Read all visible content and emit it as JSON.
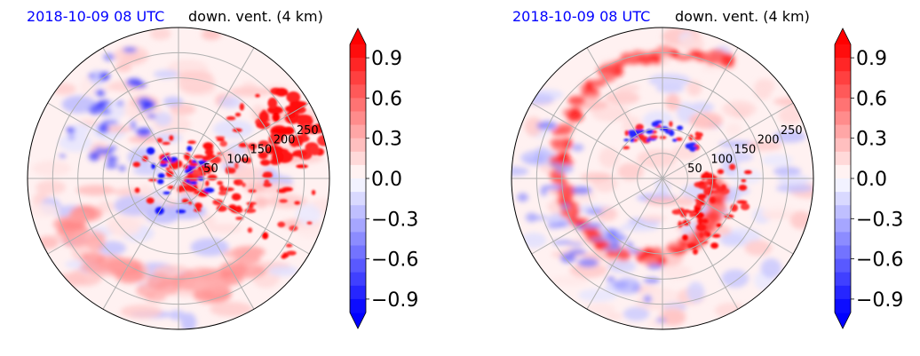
{
  "chart_data": [
    {
      "type": "heatmap",
      "projection": "polar",
      "title_left": "2018-10-09 08 UTC",
      "title_right": "down. vent. (4 km)",
      "radial_ticks": [
        50,
        100,
        150,
        200,
        250
      ],
      "radial_max": 300,
      "grid": true,
      "grid_angles_deg": [
        0,
        30,
        60,
        90,
        120,
        150,
        180,
        210,
        240,
        270,
        300,
        330
      ],
      "colorbar": {
        "range": [
          -1.0,
          1.0
        ],
        "extend": "both",
        "ticks": [
          "0.9",
          "0.6",
          "0.3",
          "0.0",
          "−0.3",
          "−0.6",
          "−0.9"
        ],
        "tick_values": [
          0.9,
          0.6,
          0.3,
          0.0,
          -0.3,
          -0.6,
          -0.9
        ],
        "colormap": "bwr",
        "levels": 20
      }
    },
    {
      "type": "heatmap",
      "projection": "polar",
      "title_left": "2018-10-09 08 UTC",
      "title_right": "down. vent. (4 km)",
      "radial_ticks": [
        50,
        100,
        150,
        200,
        250
      ],
      "radial_max": 300,
      "grid": true,
      "grid_angles_deg": [
        0,
        30,
        60,
        90,
        120,
        150,
        180,
        210,
        240,
        270,
        300,
        330
      ],
      "colorbar": {
        "range": [
          -1.0,
          1.0
        ],
        "extend": "both",
        "ticks": [
          "0.9",
          "0.6",
          "0.3",
          "0.0",
          "−0.3",
          "−0.6",
          "−0.9"
        ],
        "tick_values": [
          0.9,
          0.6,
          0.3,
          0.0,
          -0.3,
          -0.6,
          -0.9
        ],
        "colormap": "bwr",
        "levels": 20
      }
    }
  ]
}
